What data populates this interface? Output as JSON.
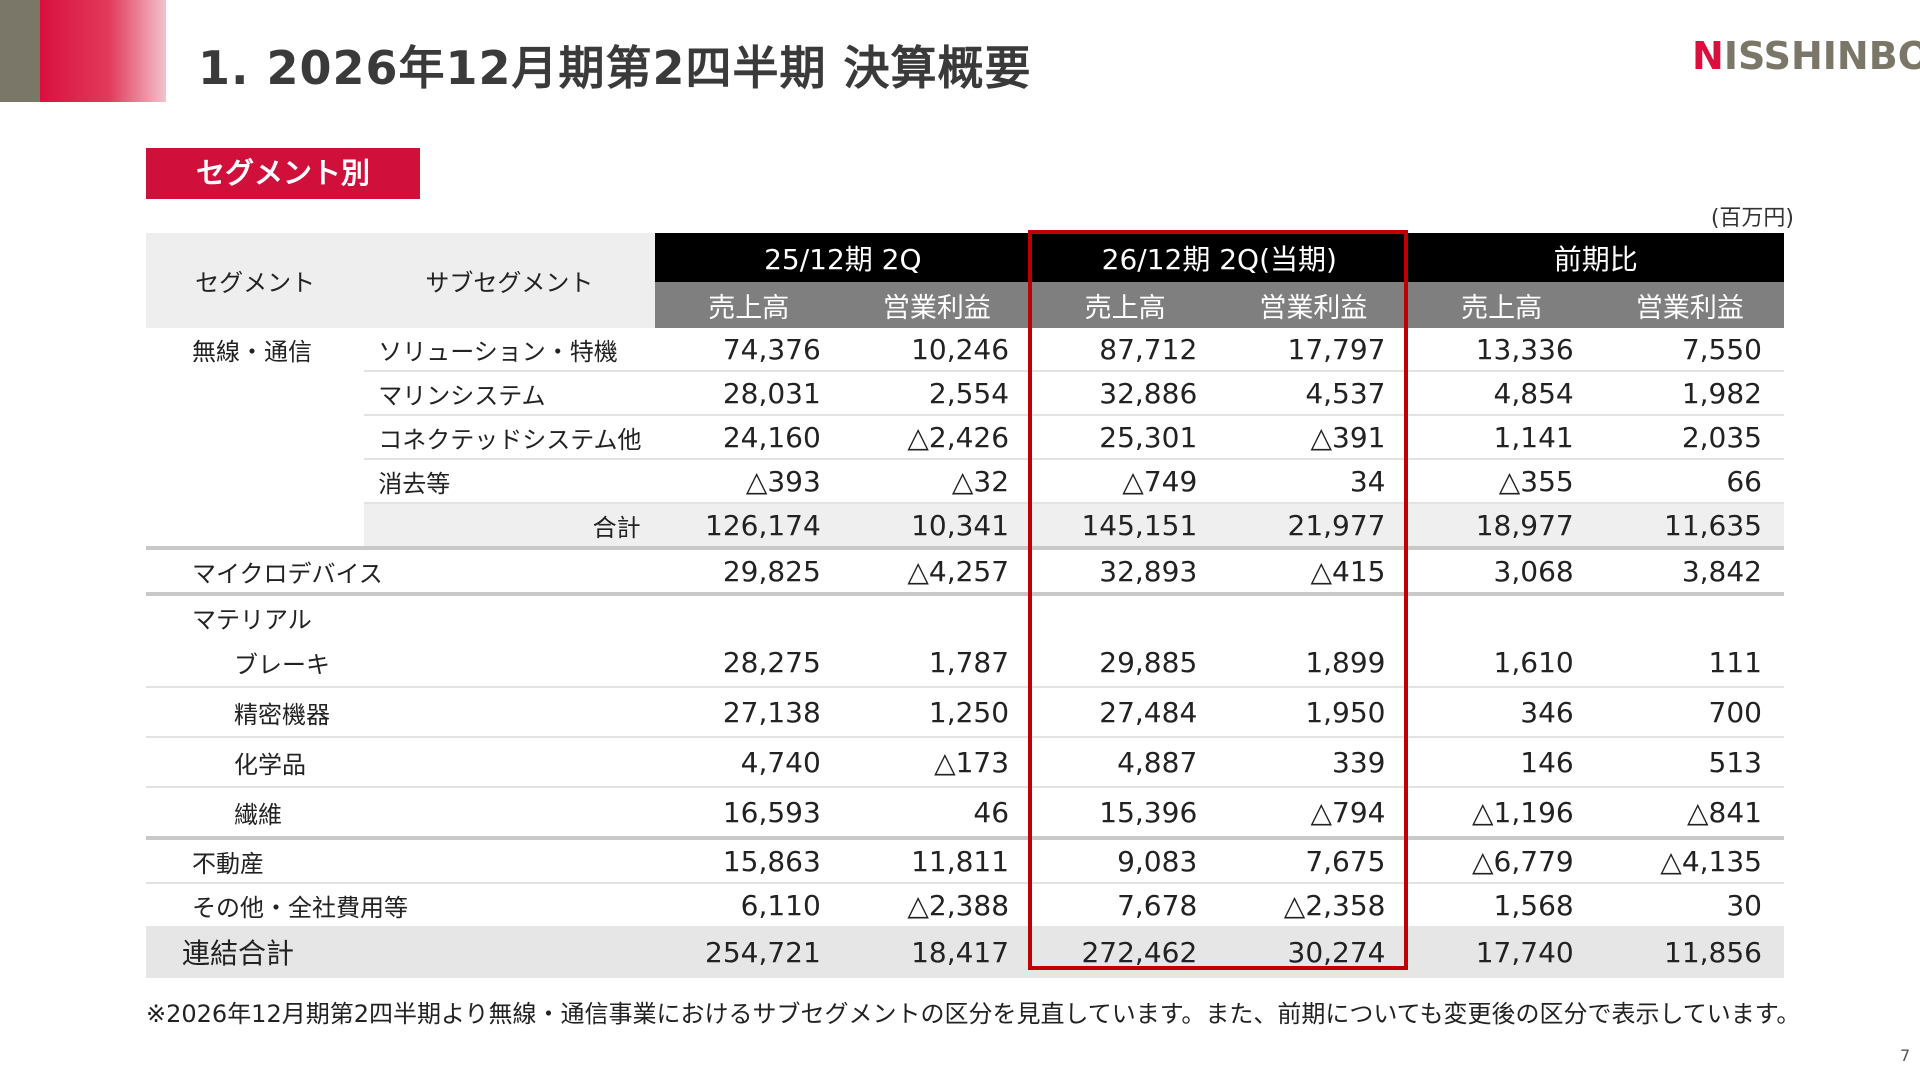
{
  "header": {
    "title": "1. 2026年12月期第2四半期 決算概要",
    "logo_text_n": "N",
    "logo_text_rest": "ISSHINBO"
  },
  "section_label": "セグメント別",
  "unit_label": "(百万円)",
  "table": {
    "col_segment": "セグメント",
    "col_subsegment": "サブセグメント",
    "period_prev": "25/12期 2Q",
    "period_curr": "26/12期 2Q(当期)",
    "period_diff": "前期比",
    "metric_sales": "売上高",
    "metric_op": "営業利益",
    "rows": [
      {
        "segment": "無線・通信",
        "sub": "ソリューション・特機",
        "v": [
          "74,376",
          "10,246",
          "87,712",
          "17,797",
          "13,336",
          "7,550"
        ]
      },
      {
        "segment": "",
        "sub": "マリンシステム",
        "v": [
          "28,031",
          "2,554",
          "32,886",
          "4,537",
          "4,854",
          "1,982"
        ]
      },
      {
        "segment": "",
        "sub": "コネクテッドシステム他",
        "v": [
          "24,160",
          "△2,426",
          "25,301",
          "△391",
          "1,141",
          "2,035"
        ]
      },
      {
        "segment": "",
        "sub": "消去等",
        "v": [
          "△393",
          "△32",
          "△749",
          "34",
          "△355",
          "66"
        ]
      },
      {
        "segment": "",
        "sub": "合計",
        "v": [
          "126,174",
          "10,341",
          "145,151",
          "21,977",
          "18,977",
          "11,635"
        ]
      },
      {
        "segment": "マイクロデバイス",
        "sub": "",
        "v": [
          "29,825",
          "△4,257",
          "32,893",
          "△415",
          "3,068",
          "3,842"
        ]
      },
      {
        "segment": "マテリアル",
        "sub": "",
        "v": [
          "",
          "",
          "",
          "",
          "",
          ""
        ]
      },
      {
        "segment": "ブレーキ",
        "sub": "",
        "v": [
          "28,275",
          "1,787",
          "29,885",
          "1,899",
          "1,610",
          "111"
        ]
      },
      {
        "segment": "精密機器",
        "sub": "",
        "v": [
          "27,138",
          "1,250",
          "27,484",
          "1,950",
          "346",
          "700"
        ]
      },
      {
        "segment": "化学品",
        "sub": "",
        "v": [
          "4,740",
          "△173",
          "4,887",
          "339",
          "146",
          "513"
        ]
      },
      {
        "segment": "繊維",
        "sub": "",
        "v": [
          "16,593",
          "46",
          "15,396",
          "△794",
          "△1,196",
          "△841"
        ]
      },
      {
        "segment": "不動産",
        "sub": "",
        "v": [
          "15,863",
          "11,811",
          "9,083",
          "7,675",
          "△6,779",
          "△4,135"
        ]
      },
      {
        "segment": "その他・全社費用等",
        "sub": "",
        "v": [
          "6,110",
          "△2,388",
          "7,678",
          "△2,358",
          "1,568",
          "30"
        ]
      },
      {
        "segment": "連結合計",
        "sub": "",
        "v": [
          "254,721",
          "18,417",
          "272,462",
          "30,274",
          "17,740",
          "11,856"
        ]
      }
    ]
  },
  "footnote": "※2026年12月期第2四半期より無線・通信事業におけるサブセグメントの区分を見直しています。また、前期についても変更後の区分で表示しています。",
  "page_number": "7",
  "colors": {
    "accent_red": "#d0103a",
    "highlight_border": "#c00000",
    "logo_gray": "#7a7668"
  }
}
